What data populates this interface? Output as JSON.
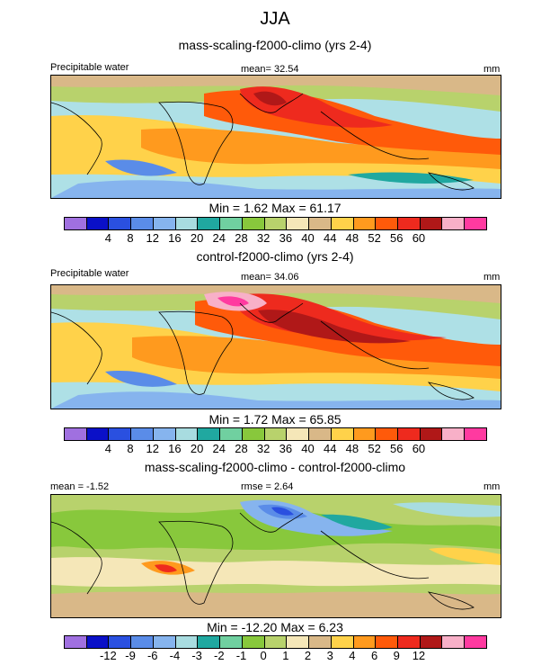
{
  "page": {
    "title": "JJA",
    "subtitle": "mass-scaling-f2000-climo (yrs 2-4)"
  },
  "chart_data": [
    {
      "type": "heatmap",
      "title": "mass-scaling-f2000-climo (yrs 2-4)",
      "left_label": "Precipitable water",
      "center_label": "mean=  32.54",
      "units": "mm",
      "stats_text": "Min =   1.62 Max =  61.17",
      "min": 1.62,
      "max": 61.17,
      "mean": 32.54,
      "colorbar": {
        "ticks": [
          "4",
          "8",
          "12",
          "16",
          "20",
          "24",
          "28",
          "32",
          "36",
          "40",
          "44",
          "48",
          "52",
          "56",
          "60"
        ],
        "colors": [
          "#a070e0",
          "#0a10c8",
          "#2a50e0",
          "#5a8ce8",
          "#86b4ee",
          "#a8dce0",
          "#20a8a0",
          "#70d0a0",
          "#88c83c",
          "#b8d26c",
          "#f5e7b8",
          "#d9b888",
          "#ffd24a",
          "#ff9a1e",
          "#ff5a0a",
          "#ee2a1e",
          "#b01818",
          "#f8b0c8",
          "#ff3aa0"
        ]
      }
    },
    {
      "type": "heatmap",
      "title": "control-f2000-climo (yrs 2-4)",
      "left_label": "Precipitable water",
      "center_label": "mean=  34.06",
      "units": "mm",
      "stats_text": "Min =   1.72 Max =  65.85",
      "min": 1.72,
      "max": 65.85,
      "mean": 34.06,
      "colorbar": {
        "ticks": [
          "4",
          "8",
          "12",
          "16",
          "20",
          "24",
          "28",
          "32",
          "36",
          "40",
          "44",
          "48",
          "52",
          "56",
          "60"
        ],
        "colors": [
          "#a070e0",
          "#0a10c8",
          "#2a50e0",
          "#5a8ce8",
          "#86b4ee",
          "#a8dce0",
          "#20a8a0",
          "#70d0a0",
          "#88c83c",
          "#b8d26c",
          "#f5e7b8",
          "#d9b888",
          "#ffd24a",
          "#ff9a1e",
          "#ff5a0a",
          "#ee2a1e",
          "#b01818",
          "#f8b0c8",
          "#ff3aa0"
        ]
      }
    },
    {
      "type": "heatmap",
      "title": "mass-scaling-f2000-climo - control-f2000-climo",
      "left_label": "mean = -1.52",
      "center_label": "rmse =   2.64",
      "units": "mm",
      "stats_text": "Min = -12.20 Max =   6.23",
      "min": -12.2,
      "max": 6.23,
      "mean": -1.52,
      "rmse": 2.64,
      "colorbar": {
        "ticks": [
          "-12",
          "-9",
          "-6",
          "-4",
          "-3",
          "-2",
          "-1",
          "0",
          "1",
          "2",
          "3",
          "4",
          "6",
          "9",
          "12"
        ],
        "colors": [
          "#a070e0",
          "#0a10c8",
          "#2a50e0",
          "#5a8ce8",
          "#86b4ee",
          "#a8dce0",
          "#20a8a0",
          "#70d0a0",
          "#88c83c",
          "#b8d26c",
          "#f5e7b8",
          "#d9b888",
          "#ffd24a",
          "#ff9a1e",
          "#ff5a0a",
          "#ee2a1e",
          "#b01818",
          "#f8b0c8",
          "#ff3aa0"
        ]
      }
    }
  ]
}
